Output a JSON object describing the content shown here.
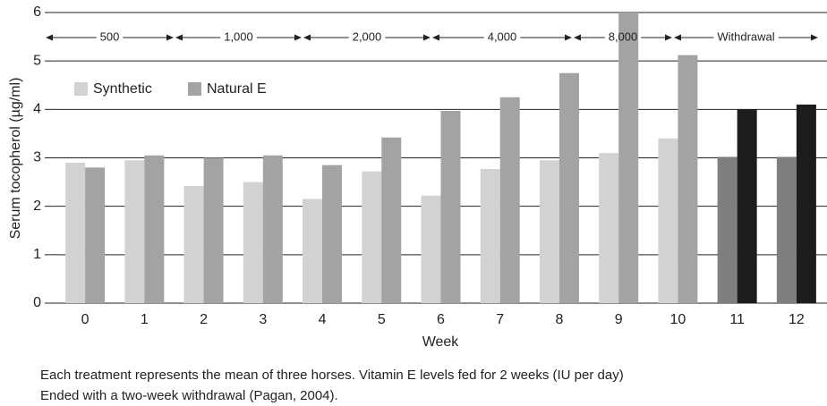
{
  "chart_data": {
    "type": "bar",
    "xlabel": "Week",
    "ylabel": "Serum tocopherol (µg/ml)",
    "categories": [
      "0",
      "1",
      "2",
      "3",
      "4",
      "5",
      "6",
      "7",
      "8",
      "9",
      "10",
      "11",
      "12"
    ],
    "series": [
      {
        "name": "Synthetic",
        "color": "#d2d2d2",
        "colors": [
          "#d2d2d2",
          "#d2d2d2",
          "#d2d2d2",
          "#d2d2d2",
          "#d2d2d2",
          "#d2d2d2",
          "#d2d2d2",
          "#d2d2d2",
          "#d2d2d2",
          "#d2d2d2",
          "#d2d2d2",
          "#7f7f7f",
          "#7f7f7f"
        ],
        "values": [
          2.9,
          2.95,
          2.42,
          2.5,
          2.15,
          2.72,
          2.22,
          2.77,
          2.95,
          3.1,
          3.4,
          3.02,
          3.02
        ]
      },
      {
        "name": "Natural E",
        "color": "#a3a3a3",
        "colors": [
          "#a3a3a3",
          "#a3a3a3",
          "#a3a3a3",
          "#a3a3a3",
          "#a3a3a3",
          "#a3a3a3",
          "#a3a3a3",
          "#a3a3a3",
          "#a3a3a3",
          "#a3a3a3",
          "#a3a3a3",
          "#1c1c1c",
          "#1c1c1c"
        ],
        "values": [
          2.8,
          3.05,
          3.0,
          3.05,
          2.85,
          3.42,
          3.97,
          4.25,
          4.75,
          6.0,
          5.12,
          4.0,
          4.1
        ]
      }
    ],
    "ylim": [
      0,
      6
    ],
    "yticks": [
      0,
      1,
      2,
      3,
      4,
      5,
      6
    ],
    "grid": true,
    "legend": "upper left",
    "annotations": [
      "500",
      "1,000",
      "2,000",
      "4,000",
      "8,000",
      "Withdrawal"
    ],
    "caption": [
      "Each treatment represents the mean of three horses. Vitamin E levels fed for 2 weeks (IU per day)",
      "Ended with a two-week withdrawal (Pagan, 2004)."
    ]
  }
}
